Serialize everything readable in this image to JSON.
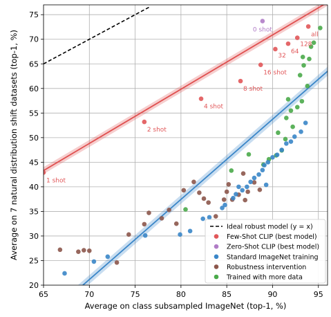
{
  "chart_data": {
    "type": "scatter",
    "xlabel": "Average on class subsampled ImageNet (top-1, %)",
    "ylabel": "Average on 7 natural distribution shift datasets (top-1, %)",
    "xlim": [
      65,
      96
    ],
    "ylim": [
      20,
      77
    ],
    "grid": true,
    "legend_position": "lower-right",
    "x_ticks": [
      65,
      70,
      75,
      80,
      85,
      90,
      95
    ],
    "y_ticks": [
      20,
      25,
      30,
      35,
      40,
      45,
      50,
      55,
      60,
      65,
      70,
      75
    ],
    "x_tick_labels": [
      "65",
      "70",
      "75",
      "80",
      "85",
      "90",
      "95"
    ],
    "y_tick_labels": [
      "20",
      "25",
      "30",
      "35",
      "40",
      "45",
      "50",
      "55",
      "60",
      "65",
      "70",
      "75"
    ],
    "ideal_line": {
      "name": "Ideal robust model (y = x)",
      "x": [
        65,
        76.5
      ],
      "y": [
        65,
        76.5
      ],
      "color": "#000000"
    },
    "fits": [
      {
        "color": "#e05050",
        "x": [
          65,
          96
        ],
        "y": [
          43.3,
          77.5
        ],
        "band": 0.7
      },
      {
        "color": "#3a86c8",
        "x": [
          65,
          96
        ],
        "y": [
          13.0,
          63.5
        ],
        "band": 0.9
      }
    ],
    "series": [
      {
        "name": "Few-Shot CLIP (best model)",
        "color": "#e15759",
        "points": [
          {
            "x": 65.0,
            "y": 42.9,
            "label": "1 shot"
          },
          {
            "x": 76.0,
            "y": 53.2,
            "label": "2 shot"
          },
          {
            "x": 82.2,
            "y": 57.9,
            "label": "4 shot"
          },
          {
            "x": 86.5,
            "y": 61.5,
            "label": "8 shot"
          },
          {
            "x": 88.7,
            "y": 64.8,
            "label": "16 shot"
          },
          {
            "x": 90.3,
            "y": 68.0,
            "label": "32"
          },
          {
            "x": 91.7,
            "y": 69.1,
            "label": "64"
          },
          {
            "x": 92.7,
            "y": 70.3,
            "label": "128"
          },
          {
            "x": 93.9,
            "y": 72.6,
            "label": "all"
          }
        ]
      },
      {
        "name": "Zero-Shot CLIP (best model)",
        "color": "#b07cc6",
        "points": [
          {
            "x": 88.9,
            "y": 73.7,
            "label": "0 shot"
          }
        ]
      },
      {
        "name": "Standard ImageNet training",
        "color": "#3a86c8",
        "points": [
          {
            "x": 67.3,
            "y": 22.4
          },
          {
            "x": 70.5,
            "y": 24.8
          },
          {
            "x": 72.0,
            "y": 25.8
          },
          {
            "x": 76.1,
            "y": 30.1
          },
          {
            "x": 79.9,
            "y": 30.3
          },
          {
            "x": 81.0,
            "y": 31.0
          },
          {
            "x": 82.4,
            "y": 33.5
          },
          {
            "x": 83.1,
            "y": 33.8
          },
          {
            "x": 84.8,
            "y": 36.3
          },
          {
            "x": 85.7,
            "y": 37.7
          },
          {
            "x": 86.0,
            "y": 38.5
          },
          {
            "x": 86.7,
            "y": 39.3
          },
          {
            "x": 87.2,
            "y": 40.0
          },
          {
            "x": 87.6,
            "y": 41.0
          },
          {
            "x": 88.0,
            "y": 41.8
          },
          {
            "x": 88.5,
            "y": 42.5
          },
          {
            "x": 88.9,
            "y": 43.4
          },
          {
            "x": 89.1,
            "y": 44.4
          },
          {
            "x": 89.5,
            "y": 45.0
          },
          {
            "x": 90.0,
            "y": 46.0
          },
          {
            "x": 90.5,
            "y": 46.5
          },
          {
            "x": 91.0,
            "y": 47.5
          },
          {
            "x": 91.5,
            "y": 48.8
          },
          {
            "x": 92.0,
            "y": 49.2
          },
          {
            "x": 92.4,
            "y": 50.2
          },
          {
            "x": 93.1,
            "y": 51.2
          },
          {
            "x": 93.6,
            "y": 53.0
          },
          {
            "x": 89.3,
            "y": 40.4
          },
          {
            "x": 86.3,
            "y": 40.0
          },
          {
            "x": 84.5,
            "y": 35.7
          }
        ]
      },
      {
        "name": "Robustness intervention",
        "color": "#8c564b",
        "points": [
          {
            "x": 66.8,
            "y": 27.2
          },
          {
            "x": 68.8,
            "y": 26.8
          },
          {
            "x": 69.4,
            "y": 27.1
          },
          {
            "x": 70.0,
            "y": 27.0
          },
          {
            "x": 73.0,
            "y": 24.6
          },
          {
            "x": 74.3,
            "y": 30.3
          },
          {
            "x": 76.0,
            "y": 32.4
          },
          {
            "x": 76.5,
            "y": 34.7
          },
          {
            "x": 77.9,
            "y": 33.6
          },
          {
            "x": 78.7,
            "y": 35.3
          },
          {
            "x": 79.5,
            "y": 32.5
          },
          {
            "x": 80.3,
            "y": 39.3
          },
          {
            "x": 81.4,
            "y": 41.0
          },
          {
            "x": 82.0,
            "y": 38.8
          },
          {
            "x": 82.5,
            "y": 37.6
          },
          {
            "x": 83.0,
            "y": 36.8
          },
          {
            "x": 83.8,
            "y": 34.0
          },
          {
            "x": 84.7,
            "y": 37.4
          },
          {
            "x": 85.0,
            "y": 39.0
          },
          {
            "x": 85.6,
            "y": 37.4
          },
          {
            "x": 86.3,
            "y": 38.4
          },
          {
            "x": 86.8,
            "y": 42.7
          },
          {
            "x": 87.3,
            "y": 39.0
          },
          {
            "x": 88.0,
            "y": 40.9
          },
          {
            "x": 88.6,
            "y": 39.4
          },
          {
            "x": 87.0,
            "y": 37.3
          },
          {
            "x": 85.2,
            "y": 40.5
          }
        ]
      },
      {
        "name": "Trained with more data",
        "color": "#4aaa4a",
        "points": [
          {
            "x": 80.5,
            "y": 35.4
          },
          {
            "x": 85.5,
            "y": 43.3
          },
          {
            "x": 87.4,
            "y": 46.6
          },
          {
            "x": 89.0,
            "y": 44.5
          },
          {
            "x": 89.6,
            "y": 45.6
          },
          {
            "x": 90.4,
            "y": 46.4
          },
          {
            "x": 91.0,
            "y": 47.4
          },
          {
            "x": 91.4,
            "y": 49.7
          },
          {
            "x": 91.5,
            "y": 54.0
          },
          {
            "x": 92.0,
            "y": 55.5
          },
          {
            "x": 92.7,
            "y": 56.2
          },
          {
            "x": 93.2,
            "y": 57.4
          },
          {
            "x": 93.0,
            "y": 62.7
          },
          {
            "x": 93.4,
            "y": 64.7
          },
          {
            "x": 94.0,
            "y": 66.0
          },
          {
            "x": 94.2,
            "y": 68.5
          },
          {
            "x": 95.2,
            "y": 72.3
          },
          {
            "x": 93.8,
            "y": 60.5
          },
          {
            "x": 92.2,
            "y": 52.2
          },
          {
            "x": 90.6,
            "y": 51.0
          },
          {
            "x": 94.5,
            "y": 69.3
          },
          {
            "x": 93.3,
            "y": 66.4
          },
          {
            "x": 91.7,
            "y": 57.8
          }
        ]
      }
    ]
  },
  "legend": {
    "items": [
      {
        "label": "Ideal robust model (y = x)",
        "kind": "dashed-line",
        "color": "#000000"
      },
      {
        "label": "Few-Shot CLIP (best model)",
        "kind": "dot",
        "color": "#e15759"
      },
      {
        "label": "Zero-Shot CLIP (best model)",
        "kind": "dot",
        "color": "#b07cc6"
      },
      {
        "label": "Standard ImageNet training",
        "kind": "dot",
        "color": "#3a86c8"
      },
      {
        "label": "Robustness intervention",
        "kind": "dot",
        "color": "#8c564b"
      },
      {
        "label": "Trained with more data",
        "kind": "dot",
        "color": "#4aaa4a"
      }
    ]
  }
}
